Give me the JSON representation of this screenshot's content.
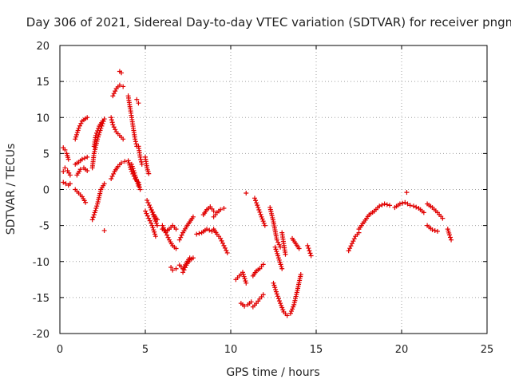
{
  "chart_data": {
    "type": "scatter",
    "title": "Day 306 of 2021, Sidereal Day-to-day VTEC variation (SDTVAR) for receiver pngm",
    "xlabel": "GPS time / hours",
    "ylabel": "SDTVAR / TECUs",
    "xlim": [
      0,
      25
    ],
    "ylim": [
      -20,
      20
    ],
    "x_ticks": [
      0,
      5,
      10,
      15,
      20,
      25
    ],
    "y_ticks": [
      -20,
      -15,
      -10,
      -5,
      0,
      5,
      10,
      15,
      20
    ],
    "x_tick_labels": [
      "0",
      "5",
      "10",
      "15",
      "20",
      "25"
    ],
    "y_tick_labels": [
      "-20",
      "-15",
      "-10",
      "-5",
      "0",
      "5",
      "10",
      "15",
      "20"
    ],
    "grid": true,
    "marker": "+",
    "color": "#e00000",
    "segments": [
      {
        "x": [
          0.2,
          0.3,
          0.4,
          0.5
        ],
        "y": [
          5.8,
          5.5,
          5.0,
          4.2
        ]
      },
      {
        "x": [
          0.2,
          0.3,
          0.45,
          0.6
        ],
        "y": [
          2.5,
          3.0,
          2.6,
          2.0
        ]
      },
      {
        "x": [
          0.2,
          0.35,
          0.5,
          0.6
        ],
        "y": [
          1.0,
          0.8,
          0.6,
          0.8
        ]
      },
      {
        "x": [
          0.9,
          1.1,
          1.3,
          1.6
        ],
        "y": [
          7.0,
          8.5,
          9.5,
          10.0
        ]
      },
      {
        "x": [
          0.9,
          1.1,
          1.3,
          1.6
        ],
        "y": [
          3.5,
          3.8,
          4.2,
          4.5
        ]
      },
      {
        "x": [
          1.0,
          1.2,
          1.4,
          1.6
        ],
        "y": [
          2.0,
          2.8,
          3.0,
          2.6
        ]
      },
      {
        "x": [
          0.9,
          1.1,
          1.3,
          1.5
        ],
        "y": [
          0.0,
          -0.5,
          -1.0,
          -1.8
        ]
      },
      {
        "x": [
          1.9,
          2.0,
          2.2,
          2.4,
          2.6
        ],
        "y": [
          -4.2,
          -3.5,
          -2.0,
          0.0,
          0.8
        ]
      },
      {
        "x": [
          1.9,
          2.0,
          2.2,
          2.4,
          2.6
        ],
        "y": [
          3.0,
          5.0,
          7.0,
          8.5,
          9.8
        ]
      },
      {
        "x": [
          2.0,
          2.1,
          2.3,
          2.5
        ],
        "y": [
          6.0,
          7.5,
          8.8,
          9.5
        ]
      },
      {
        "x": [
          2.6
        ],
        "y": [
          -5.7
        ]
      },
      {
        "x": [
          3.0,
          3.1,
          3.3,
          3.5,
          3.7
        ],
        "y": [
          10.0,
          9.0,
          8.0,
          7.5,
          7.0
        ]
      },
      {
        "x": [
          3.1,
          3.3,
          3.5,
          3.7
        ],
        "y": [
          13.0,
          14.0,
          14.5,
          14.3
        ]
      },
      {
        "x": [
          3.5,
          3.6
        ],
        "y": [
          16.4,
          16.2
        ]
      },
      {
        "x": [
          3.0,
          3.2,
          3.4,
          3.6,
          3.8
        ],
        "y": [
          1.5,
          2.5,
          3.2,
          3.7,
          3.9
        ]
      },
      {
        "x": [
          4.0,
          4.1,
          4.2,
          4.3,
          4.4,
          4.5
        ],
        "y": [
          13.0,
          11.5,
          10.0,
          8.5,
          7.0,
          6.0
        ]
      },
      {
        "x": [
          4.0,
          4.2,
          4.4,
          4.6,
          4.7
        ],
        "y": [
          4.0,
          2.5,
          1.5,
          1.0,
          0.0
        ]
      },
      {
        "x": [
          4.2,
          4.4,
          4.6
        ],
        "y": [
          3.5,
          2.0,
          0.5
        ]
      },
      {
        "x": [
          4.5,
          4.6
        ],
        "y": [
          12.5,
          12.0
        ]
      },
      {
        "x": [
          4.6,
          4.7,
          4.8
        ],
        "y": [
          6.0,
          4.5,
          3.5
        ]
      },
      {
        "x": [
          5.0,
          5.1,
          5.2
        ],
        "y": [
          4.5,
          3.0,
          2.2
        ]
      },
      {
        "x": [
          5.0,
          5.2,
          5.4,
          5.6
        ],
        "y": [
          -3.0,
          -4.0,
          -5.0,
          -6.5
        ]
      },
      {
        "x": [
          5.1,
          5.3,
          5.5,
          5.7
        ],
        "y": [
          -1.5,
          -2.5,
          -3.5,
          -4.2
        ]
      },
      {
        "x": [
          5.3,
          5.5,
          5.7
        ],
        "y": [
          -2.5,
          -3.8,
          -5.0
        ]
      },
      {
        "x": [
          6.0,
          6.2,
          6.4,
          6.6,
          6.8
        ],
        "y": [
          -5.0,
          -6.0,
          -7.0,
          -7.8,
          -8.2
        ]
      },
      {
        "x": [
          6.0,
          6.2,
          6.4,
          6.6,
          6.8
        ],
        "y": [
          -5.5,
          -5.8,
          -5.5,
          -5.0,
          -5.5
        ]
      },
      {
        "x": [
          6.5,
          6.6,
          6.8
        ],
        "y": [
          -10.8,
          -11.2,
          -11.0
        ]
      },
      {
        "x": [
          7.0,
          7.2,
          7.4,
          7.6,
          7.8
        ],
        "y": [
          -7.0,
          -6.0,
          -5.2,
          -4.5,
          -3.8
        ]
      },
      {
        "x": [
          7.0,
          7.2,
          7.4,
          7.6
        ],
        "y": [
          -10.5,
          -11.0,
          -10.2,
          -9.5
        ]
      },
      {
        "x": [
          7.2,
          7.4,
          7.6,
          7.8
        ],
        "y": [
          -11.5,
          -10.5,
          -9.8,
          -9.5
        ]
      },
      {
        "x": [
          8.0,
          8.3,
          8.6,
          8.9
        ],
        "y": [
          -6.2,
          -6.0,
          -5.5,
          -5.8
        ]
      },
      {
        "x": [
          8.4,
          8.6,
          8.8,
          9.0
        ],
        "y": [
          -3.5,
          -2.8,
          -2.4,
          -3.0
        ]
      },
      {
        "x": [
          9.0,
          9.2,
          9.4,
          9.6
        ],
        "y": [
          -3.8,
          -3.2,
          -2.8,
          -2.6
        ]
      },
      {
        "x": [
          9.0,
          9.2,
          9.4,
          9.6,
          9.8
        ],
        "y": [
          -5.5,
          -6.2,
          -6.8,
          -7.8,
          -8.8
        ]
      },
      {
        "x": [
          10.3,
          10.5,
          10.7,
          10.9
        ],
        "y": [
          -12.5,
          -12.0,
          -11.5,
          -13.0
        ]
      },
      {
        "x": [
          10.6,
          10.8,
          11.0,
          11.2
        ],
        "y": [
          -15.8,
          -16.2,
          -16.0,
          -15.6
        ]
      },
      {
        "x": [
          10.9
        ],
        "y": [
          -0.5
        ]
      },
      {
        "x": [
          11.3,
          11.5,
          11.7,
          11.9
        ],
        "y": [
          -12.0,
          -11.3,
          -11.0,
          -10.4
        ]
      },
      {
        "x": [
          11.3,
          11.5,
          11.7,
          11.9
        ],
        "y": [
          -16.3,
          -15.8,
          -15.2,
          -14.6
        ]
      },
      {
        "x": [
          11.4,
          11.6,
          11.8,
          12.0
        ],
        "y": [
          -1.2,
          -2.5,
          -3.8,
          -5.0
        ]
      },
      {
        "x": [
          12.3,
          12.5,
          12.7,
          12.9
        ],
        "y": [
          -2.5,
          -4.5,
          -7.0,
          -8.0
        ]
      },
      {
        "x": [
          12.5,
          12.7,
          12.9,
          13.1,
          13.3
        ],
        "y": [
          -13.0,
          -14.5,
          -15.8,
          -17.0,
          -17.5
        ]
      },
      {
        "x": [
          12.6,
          12.8,
          13.0
        ],
        "y": [
          -8.0,
          -9.5,
          -11.0
        ]
      },
      {
        "x": [
          13.0,
          13.1,
          13.2
        ],
        "y": [
          -6.0,
          -7.5,
          -9.0
        ]
      },
      {
        "x": [
          13.5,
          13.7,
          13.9,
          14.1
        ],
        "y": [
          -17.2,
          -16.0,
          -14.0,
          -11.8
        ]
      },
      {
        "x": [
          13.6,
          13.8,
          14.0
        ],
        "y": [
          -6.8,
          -7.5,
          -8.2
        ]
      },
      {
        "x": [
          14.5,
          14.6,
          14.7
        ],
        "y": [
          -7.8,
          -8.5,
          -9.2
        ]
      },
      {
        "x": [
          16.9,
          17.1,
          17.3,
          17.5
        ],
        "y": [
          -8.5,
          -7.5,
          -6.5,
          -6.0
        ]
      },
      {
        "x": [
          17.5,
          17.8,
          18.1,
          18.4
        ],
        "y": [
          -5.5,
          -4.5,
          -3.5,
          -3.0
        ]
      },
      {
        "x": [
          18.4,
          18.7,
          19.0,
          19.3
        ],
        "y": [
          -3.0,
          -2.3,
          -2.0,
          -2.2
        ]
      },
      {
        "x": [
          19.6,
          19.9,
          20.2,
          20.5
        ],
        "y": [
          -2.5,
          -2.0,
          -1.8,
          -2.2
        ]
      },
      {
        "x": [
          20.3
        ],
        "y": [
          -0.4
        ]
      },
      {
        "x": [
          20.7,
          21.0,
          21.3
        ],
        "y": [
          -2.3,
          -2.6,
          -3.2
        ]
      },
      {
        "x": [
          21.5,
          21.8,
          22.1,
          22.4
        ],
        "y": [
          -2.0,
          -2.5,
          -3.2,
          -4.0
        ]
      },
      {
        "x": [
          21.5,
          21.8,
          22.1
        ],
        "y": [
          -5.0,
          -5.6,
          -5.8
        ]
      },
      {
        "x": [
          22.7,
          22.8,
          22.9
        ],
        "y": [
          -5.5,
          -6.3,
          -7.0
        ]
      }
    ]
  }
}
